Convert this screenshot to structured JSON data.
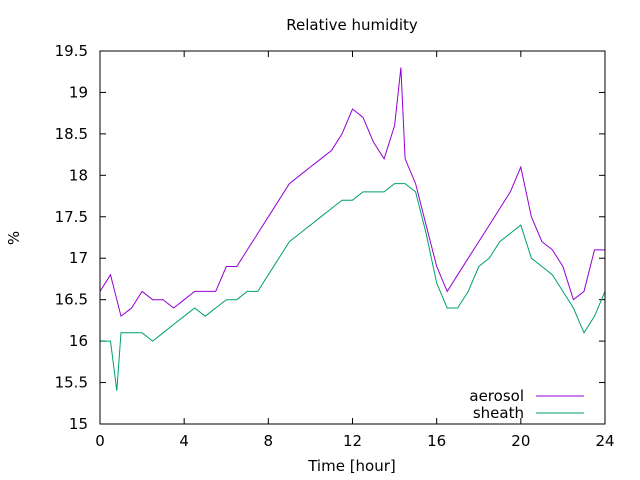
{
  "chart_data": {
    "type": "line",
    "title": "Relative humidity",
    "xlabel": "Time [hour]",
    "ylabel": "%",
    "xlim": [
      0,
      24
    ],
    "ylim": [
      15,
      19.5
    ],
    "xticks": [
      0,
      4,
      8,
      12,
      16,
      20,
      24
    ],
    "yticks": [
      15,
      15.5,
      16,
      16.5,
      17,
      17.5,
      18,
      18.5,
      19,
      19.5
    ],
    "grid": false,
    "legend_position": "bottom-right",
    "series": [
      {
        "name": "aerosol",
        "color": "#9400d3",
        "x": [
          0,
          0.5,
          1,
          1.5,
          2,
          2.5,
          3,
          3.5,
          4,
          4.5,
          5,
          5.5,
          6,
          6.5,
          7,
          7.5,
          8,
          8.5,
          9,
          9.5,
          10,
          10.5,
          11,
          11.5,
          12,
          12.5,
          13,
          13.5,
          14,
          14.3,
          14.5,
          15,
          15.5,
          16,
          16.5,
          17,
          17.5,
          18,
          18.5,
          19,
          19.5,
          20,
          20.5,
          21,
          21.5,
          22,
          22.5,
          23,
          23.5,
          24
        ],
        "y": [
          16.6,
          16.8,
          16.3,
          16.4,
          16.6,
          16.5,
          16.5,
          16.4,
          16.5,
          16.6,
          16.6,
          16.6,
          16.9,
          16.9,
          17.1,
          17.3,
          17.5,
          17.7,
          17.9,
          18.0,
          18.1,
          18.2,
          18.3,
          18.5,
          18.8,
          18.7,
          18.4,
          18.2,
          18.6,
          19.3,
          18.2,
          17.9,
          17.4,
          16.9,
          16.6,
          16.8,
          17.0,
          17.2,
          17.4,
          17.6,
          17.8,
          18.1,
          17.5,
          17.2,
          17.1,
          16.9,
          16.5,
          16.6,
          17.1,
          17.1
        ]
      },
      {
        "name": "sheath",
        "color": "#009e73",
        "x": [
          0,
          0.5,
          0.8,
          1,
          1.5,
          2,
          2.5,
          3,
          3.5,
          4,
          4.5,
          5,
          5.5,
          6,
          6.5,
          7,
          7.5,
          8,
          8.5,
          9,
          9.5,
          10,
          10.5,
          11,
          11.5,
          12,
          12.5,
          13,
          13.5,
          14,
          14.5,
          15,
          15.5,
          16,
          16.5,
          17,
          17.5,
          18,
          18.5,
          19,
          19.5,
          20,
          20.5,
          21,
          21.5,
          22,
          22.5,
          23,
          23.5,
          24
        ],
        "y": [
          16.0,
          16.0,
          15.4,
          16.1,
          16.1,
          16.1,
          16.0,
          16.1,
          16.2,
          16.3,
          16.4,
          16.3,
          16.4,
          16.5,
          16.5,
          16.6,
          16.6,
          16.8,
          17.0,
          17.2,
          17.3,
          17.4,
          17.5,
          17.6,
          17.7,
          17.7,
          17.8,
          17.8,
          17.8,
          17.9,
          17.9,
          17.8,
          17.3,
          16.7,
          16.4,
          16.4,
          16.6,
          16.9,
          17.0,
          17.2,
          17.3,
          17.4,
          17.0,
          16.9,
          16.8,
          16.6,
          16.4,
          16.1,
          16.3,
          16.6
        ]
      }
    ]
  }
}
